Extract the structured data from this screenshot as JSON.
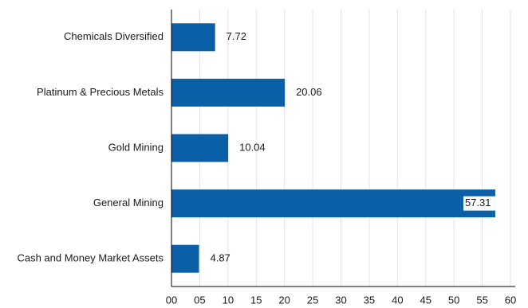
{
  "chart_data": {
    "type": "bar",
    "orientation": "horizontal",
    "categories": [
      "Chemicals Diversified",
      "Platinum & Precious Metals",
      "Gold Mining",
      "General Mining",
      "Cash and Money Market Assets"
    ],
    "values": [
      7.72,
      20.06,
      10.04,
      57.31,
      4.87
    ],
    "value_labels": [
      "7.72",
      "20.06",
      "10.04",
      "57.31",
      "4.87"
    ],
    "title": "",
    "xlabel": "",
    "ylabel": "",
    "xlim": [
      0,
      60
    ],
    "x_ticks": [
      0,
      5,
      10,
      15,
      20,
      25,
      30,
      35,
      40,
      45,
      50,
      55,
      60
    ],
    "x_tick_labels": [
      "00",
      "05",
      "10",
      "15",
      "20",
      "25",
      "30",
      "35",
      "40",
      "45",
      "50",
      "55",
      "60"
    ],
    "grid": "vertical",
    "legend": "none",
    "colors": {
      "bar": "#0a5fa6",
      "grid": "#e3e3e3",
      "axis": "#000000",
      "text": "#1a1a1a",
      "label_background": "#ffffff"
    }
  }
}
